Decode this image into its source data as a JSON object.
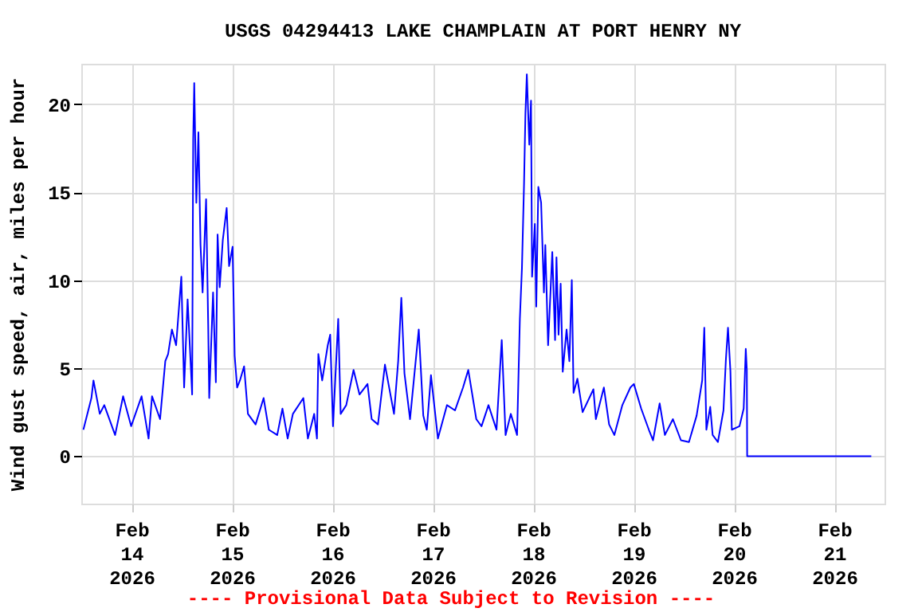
{
  "chart_data": {
    "type": "line",
    "title": "USGS 04294413 LAKE CHAMPLAIN AT PORT HENRY NY",
    "ylabel": "Wind gust speed, air, miles per hour",
    "annotations": [
      "---- Provisional Data Subject to Revision ----"
    ],
    "x": [
      "2026-02-13T12:30",
      "2026-02-13T14:25",
      "2026-02-13T14:55",
      "2026-02-13T16:25",
      "2026-02-13T17:30",
      "2026-02-13T20:05",
      "2026-02-13T22:00",
      "2026-02-13T23:55",
      "2026-02-14T02:25",
      "2026-02-14T04:05",
      "2026-02-14T04:55",
      "2026-02-14T06:50",
      "2026-02-14T08:05",
      "2026-02-14T08:45",
      "2026-02-14T09:40",
      "2026-02-14T10:40",
      "2026-02-14T11:55",
      "2026-02-14T12:35",
      "2026-02-14T13:25",
      "2026-02-14T14:30",
      "2026-02-14T14:45",
      "2026-02-14T15:00",
      "2026-02-14T15:30",
      "2026-02-14T16:00",
      "2026-02-14T16:30",
      "2026-02-14T17:00",
      "2026-02-14T17:50",
      "2026-02-14T18:20",
      "2026-02-14T18:35",
      "2026-02-14T19:30",
      "2026-02-14T20:10",
      "2026-02-14T20:35",
      "2026-02-14T21:05",
      "2026-02-14T21:50",
      "2026-02-14T22:45",
      "2026-02-14T23:20",
      "2026-02-15T00:10",
      "2026-02-15T00:40",
      "2026-02-15T01:15",
      "2026-02-15T01:55",
      "2026-02-15T02:55",
      "2026-02-15T03:50",
      "2026-02-15T05:40",
      "2026-02-15T07:35",
      "2026-02-15T08:50",
      "2026-02-15T10:50",
      "2026-02-15T12:05",
      "2026-02-15T13:20",
      "2026-02-15T14:35",
      "2026-02-15T17:05",
      "2026-02-15T18:10",
      "2026-02-15T19:40",
      "2026-02-15T20:20",
      "2026-02-15T20:40",
      "2026-02-15T21:35",
      "2026-02-15T22:55",
      "2026-02-15T23:30",
      "2026-02-16T00:10",
      "2026-02-16T01:25",
      "2026-02-16T02:00",
      "2026-02-16T03:20",
      "2026-02-16T05:05",
      "2026-02-16T06:30",
      "2026-02-16T08:25",
      "2026-02-16T09:25",
      "2026-02-16T10:55",
      "2026-02-16T12:35",
      "2026-02-16T14:45",
      "2026-02-16T15:45",
      "2026-02-16T16:30",
      "2026-02-16T17:15",
      "2026-02-16T18:35",
      "2026-02-16T20:40",
      "2026-02-16T21:45",
      "2026-02-16T22:35",
      "2026-02-16T23:35",
      "2026-02-17T01:15",
      "2026-02-17T03:25",
      "2026-02-17T05:20",
      "2026-02-17T07:15",
      "2026-02-17T08:30",
      "2026-02-17T10:25",
      "2026-02-17T11:40",
      "2026-02-17T13:20",
      "2026-02-17T15:15",
      "2026-02-17T16:30",
      "2026-02-17T17:25",
      "2026-02-17T18:40",
      "2026-02-17T20:10",
      "2026-02-17T20:50",
      "2026-02-17T21:20",
      "2026-02-17T21:50",
      "2026-02-17T22:10",
      "2026-02-17T22:30",
      "2026-02-17T23:05",
      "2026-02-17T23:30",
      "2026-02-17T23:45",
      "2026-02-18T00:25",
      "2026-02-18T00:45",
      "2026-02-18T01:15",
      "2026-02-18T01:55",
      "2026-02-18T02:35",
      "2026-02-18T02:55",
      "2026-02-18T03:35",
      "2026-02-18T04:35",
      "2026-02-18T05:15",
      "2026-02-18T05:35",
      "2026-02-18T06:05",
      "2026-02-18T06:35",
      "2026-02-18T07:05",
      "2026-02-18T08:00",
      "2026-02-18T08:40",
      "2026-02-18T09:15",
      "2026-02-18T09:40",
      "2026-02-18T10:35",
      "2026-02-18T11:50",
      "2026-02-18T14:25",
      "2026-02-18T15:00",
      "2026-02-18T16:55",
      "2026-02-18T18:10",
      "2026-02-18T19:25",
      "2026-02-18T21:20",
      "2026-02-18T23:15",
      "2026-02-19T00:05",
      "2026-02-19T01:50",
      "2026-02-19T03:40",
      "2026-02-19T04:40",
      "2026-02-19T06:15",
      "2026-02-19T07:30",
      "2026-02-19T09:25",
      "2026-02-19T11:20",
      "2026-02-19T13:15",
      "2026-02-19T15:05",
      "2026-02-19T16:25",
      "2026-02-19T16:55",
      "2026-02-19T17:25",
      "2026-02-19T18:20",
      "2026-02-19T18:55",
      "2026-02-19T20:10",
      "2026-02-19T21:30",
      "2026-02-19T22:05",
      "2026-02-19T22:35",
      "2026-02-19T23:10",
      "2026-02-19T23:30",
      "2026-02-20T01:20",
      "2026-02-20T02:20",
      "2026-02-20T02:50",
      "2026-02-20T03:05",
      "2026-02-20T03:10",
      "2026-02-21T08:50"
    ],
    "series": [
      {
        "color": "#0000ff",
        "values": [
          1.5,
          3.3,
          4.3,
          2.4,
          2.9,
          1.2,
          3.4,
          1.7,
          3.4,
          1.0,
          3.4,
          2.1,
          5.4,
          5.8,
          7.2,
          6.3,
          10.2,
          3.9,
          8.9,
          3.5,
          18.0,
          21.2,
          14.4,
          18.4,
          12.0,
          9.3,
          14.6,
          7.5,
          3.3,
          9.3,
          4.2,
          12.6,
          9.6,
          12.3,
          14.1,
          10.8,
          11.9,
          5.7,
          3.9,
          4.3,
          5.1,
          2.4,
          1.8,
          3.3,
          1.5,
          1.2,
          2.7,
          1.0,
          2.4,
          3.3,
          1.0,
          2.4,
          1.0,
          5.8,
          4.3,
          6.3,
          6.9,
          1.7,
          7.8,
          2.4,
          2.9,
          4.9,
          3.5,
          4.1,
          2.1,
          1.8,
          5.2,
          2.4,
          5.4,
          9.0,
          4.7,
          2.1,
          7.2,
          2.3,
          1.5,
          4.6,
          1.0,
          2.9,
          2.6,
          3.9,
          4.9,
          2.1,
          1.7,
          2.9,
          1.5,
          6.6,
          1.2,
          2.4,
          1.2,
          7.8,
          10.7,
          15.5,
          19.5,
          21.7,
          17.7,
          20.2,
          10.2,
          13.2,
          8.5,
          15.3,
          14.4,
          9.3,
          12.0,
          6.3,
          11.6,
          6.6,
          11.3,
          6.9,
          9.8,
          4.8,
          7.2,
          5.4,
          10.0,
          3.6,
          4.4,
          2.5,
          3.8,
          2.1,
          3.9,
          1.8,
          1.2,
          2.9,
          3.9,
          4.1,
          2.7,
          1.5,
          0.9,
          3.0,
          1.2,
          2.1,
          0.9,
          0.8,
          2.3,
          4.3,
          7.3,
          1.5,
          2.8,
          1.2,
          0.8,
          2.6,
          5.5,
          7.3,
          4.8,
          1.5,
          1.7,
          2.7,
          6.1,
          4.9,
          0,
          0
        ]
      }
    ],
    "xlim": [
      "2026-02-13T12:00",
      "2026-02-21T12:00"
    ],
    "xticks": [
      {
        "value": "2026-02-14",
        "label": "Feb\n14\n2026"
      },
      {
        "value": "2026-02-15",
        "label": "Feb\n15\n2026"
      },
      {
        "value": "2026-02-16",
        "label": "Feb\n16\n2026"
      },
      {
        "value": "2026-02-17",
        "label": "Feb\n17\n2026"
      },
      {
        "value": "2026-02-18",
        "label": "Feb\n18\n2026"
      },
      {
        "value": "2026-02-19",
        "label": "Feb\n19\n2026"
      },
      {
        "value": "2026-02-20",
        "label": "Feb\n20\n2026"
      },
      {
        "value": "2026-02-21",
        "label": "Feb\n21\n2026"
      }
    ],
    "ylim": [
      -2.7,
      22.3
    ],
    "yticks": [
      0,
      5,
      10,
      15,
      20
    ],
    "grid": true,
    "line_style": "solid",
    "marker": "none"
  }
}
